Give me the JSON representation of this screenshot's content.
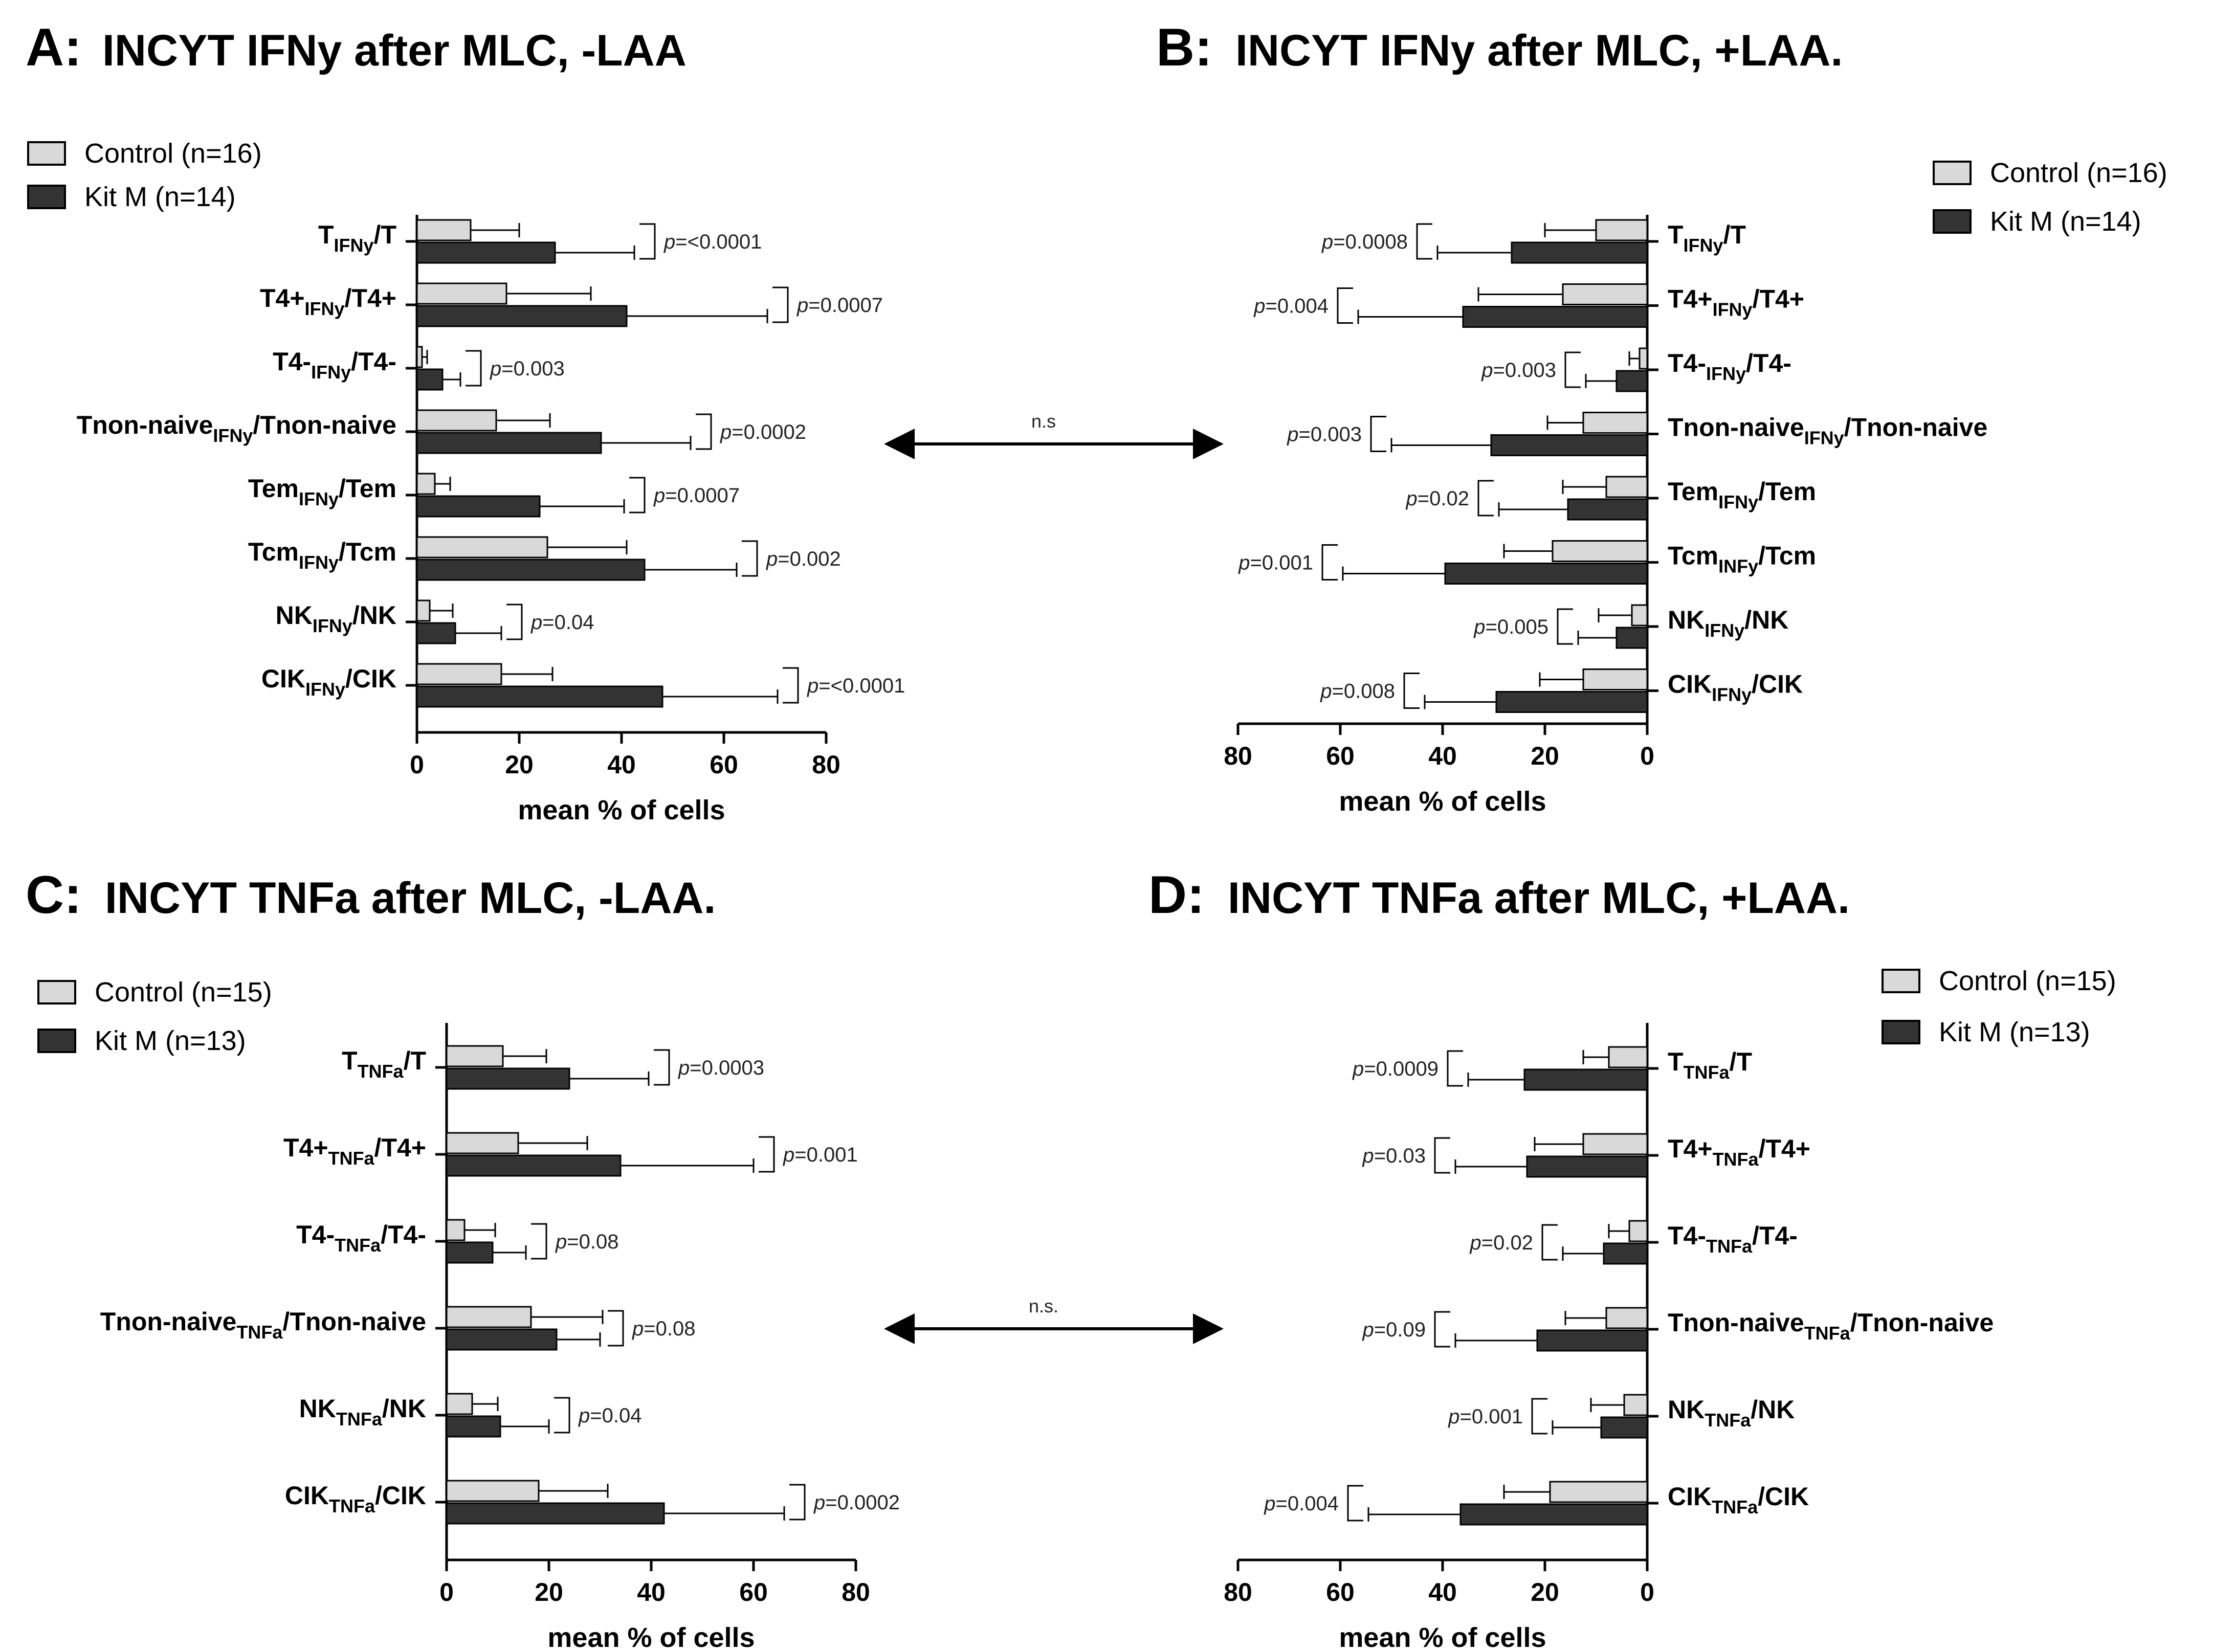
{
  "chart_data": [
    {
      "type": "bar",
      "orientation": "horizontal",
      "panel_letter": "A:",
      "title": "INCYT IFNy after MLC, -LAA",
      "xlabel": "mean % of cells",
      "xlim": [
        0,
        80
      ],
      "xticks": [
        "0",
        "20",
        "40",
        "60",
        "80"
      ],
      "categories": [
        {
          "main": "T",
          "sub": "IFNy",
          "tail": "/T"
        },
        {
          "main": "T4+",
          "sub": "IFNy",
          "tail": "/T4+"
        },
        {
          "main": "T4-",
          "sub": "IFNy",
          "tail": "/T4-"
        },
        {
          "main": "Tnon-naive",
          "sub": "IFNy",
          "tail": "/Tnon-naive"
        },
        {
          "main": "Tem",
          "sub": "IFNy",
          "tail": "/Tem"
        },
        {
          "main": "Tcm",
          "sub": "IFNy",
          "tail": "/Tcm"
        },
        {
          "main": "NK",
          "sub": "IFNy",
          "tail": "/NK"
        },
        {
          "main": "CIK",
          "sub": "IFNy",
          "tail": "/CIK"
        }
      ],
      "series": [
        {
          "name": "Control (n=16)",
          "color": "#d9d9d9",
          "values": [
            10.5,
            17.5,
            1,
            15.5,
            3.5,
            25.5,
            2.5,
            16.5
          ],
          "errors": [
            9.5,
            16.5,
            1,
            10.5,
            3,
            15.5,
            4.5,
            10
          ]
        },
        {
          "name": "Kit M (n=14)",
          "color": "#333333",
          "values": [
            27,
            41,
            5,
            36,
            24,
            44.5,
            7.5,
            48
          ],
          "errors": [
            15.5,
            27.5,
            3.5,
            17.5,
            16.5,
            18,
            9,
            22.5
          ]
        }
      ],
      "pvalues": [
        "=<0.0001",
        "=0.0007",
        "=0.003",
        "=0.0002",
        "=0.0007",
        "=0.002",
        "=0.04",
        "=<0.0001"
      ],
      "legend_position": "top-left"
    },
    {
      "type": "bar",
      "orientation": "horizontal",
      "direction": "right-to-left",
      "panel_letter": "B:",
      "title": "INCYT IFNy after MLC, +LAA.",
      "xlabel": "mean % of cells",
      "xlim": [
        0,
        80
      ],
      "xticks": [
        "80",
        "60",
        "40",
        "20",
        "0"
      ],
      "categories": [
        {
          "main": "T",
          "sub": "IFNy",
          "tail": "/T"
        },
        {
          "main": "T4+",
          "sub": "IFNy",
          "tail": "/T4+"
        },
        {
          "main": "T4-",
          "sub": "IFNy",
          "tail": "/T4-"
        },
        {
          "main": "Tnon-naive",
          "sub": "IFNy",
          "tail": "/Tnon-naive"
        },
        {
          "main": "Tem",
          "sub": "IFNy",
          "tail": "/Tem"
        },
        {
          "main": "Tcm",
          "sub": "INFy",
          "tail": "/Tcm"
        },
        {
          "main": "NK",
          "sub": "IFNy",
          "tail": "/NK"
        },
        {
          "main": "CIK",
          "sub": "IFNy",
          "tail": "/CIK"
        }
      ],
      "series": [
        {
          "name": "Control (n=16)",
          "color": "#d9d9d9",
          "values": [
            10,
            16.5,
            1.5,
            12.5,
            8,
            18.5,
            3,
            12.5
          ],
          "errors": [
            10,
            16.5,
            2,
            7,
            8.5,
            9.5,
            6.5,
            8.5
          ]
        },
        {
          "name": "Kit M (n=14)",
          "color": "#333333",
          "values": [
            26.5,
            36,
            6,
            30.5,
            15.5,
            39.5,
            6,
            29.5
          ],
          "errors": [
            14.5,
            20.5,
            6,
            19.5,
            13.5,
            20,
            7.5,
            14
          ]
        }
      ],
      "pvalues": [
        "=0.0008",
        "=0.004",
        "=0.003",
        "=0.003",
        "=0.02",
        "=0.001",
        "=0.005",
        "=0.008"
      ],
      "legend_position": "top-right"
    },
    {
      "type": "bar",
      "orientation": "horizontal",
      "panel_letter": "C:",
      "title": "INCYT TNFa after MLC, -LAA.",
      "xlabel": "mean % of cells",
      "xlim": [
        0,
        80
      ],
      "xticks": [
        "0",
        "20",
        "40",
        "60",
        "80"
      ],
      "categories": [
        {
          "main": "T",
          "sub": "TNFa",
          "tail": "/T"
        },
        {
          "main": "T4+",
          "sub": "TNFa",
          "tail": "/T4+"
        },
        {
          "main": "T4-",
          "sub": "TNFa",
          "tail": "/T4-"
        },
        {
          "main": "Tnon-naive",
          "sub": "TNFa",
          "tail": "/Tnon-naive"
        },
        {
          "main": "NK",
          "sub": "TNFa",
          "tail": "/NK"
        },
        {
          "main": "CIK",
          "sub": "TNFa",
          "tail": "/CIK"
        }
      ],
      "series": [
        {
          "name": "Control (n=15)",
          "color": "#d9d9d9",
          "values": [
            11,
            14,
            3.5,
            16.5,
            5,
            18
          ],
          "errors": [
            8.5,
            13.5,
            6,
            14,
            5,
            13.5
          ]
        },
        {
          "name": "Kit M (n=13)",
          "color": "#333333",
          "values": [
            24,
            34,
            9,
            21.5,
            10.5,
            42.5
          ],
          "errors": [
            15.5,
            26,
            6.5,
            8.5,
            9.5,
            23.5
          ]
        }
      ],
      "pvalues": [
        "=0.0003",
        "=0.001",
        "=0.08",
        "=0.08",
        "=0.04",
        "=0.0002"
      ],
      "legend_position": "top-left"
    },
    {
      "type": "bar",
      "orientation": "horizontal",
      "direction": "right-to-left",
      "panel_letter": "D:",
      "title": "INCYT TNFa after MLC, +LAA.",
      "xlabel": "mean % of cells",
      "xlim": [
        0,
        80
      ],
      "xticks": [
        "80",
        "60",
        "40",
        "20",
        "0"
      ],
      "categories": [
        {
          "main": "T",
          "sub": "TNFa",
          "tail": "/T"
        },
        {
          "main": "T4+",
          "sub": "TNFa",
          "tail": "/T4+"
        },
        {
          "main": "T4-",
          "sub": "TNFa",
          "tail": "/T4-"
        },
        {
          "main": "Tnon-naive",
          "sub": "TNFa",
          "tail": "/Tnon-naive"
        },
        {
          "main": "NK",
          "sub": "TNFa",
          "tail": "/NK"
        },
        {
          "main": "CIK",
          "sub": "TNFa",
          "tail": "/CIK"
        }
      ],
      "series": [
        {
          "name": "Control (n=15)",
          "color": "#d9d9d9",
          "values": [
            7.5,
            12.5,
            3.5,
            8,
            4.5,
            19
          ],
          "errors": [
            5,
            9.5,
            4,
            8,
            6.5,
            9
          ]
        },
        {
          "name": "Kit M (n=13)",
          "color": "#333333",
          "values": [
            24,
            23.5,
            8.5,
            21.5,
            9,
            36.5
          ],
          "errors": [
            11,
            14,
            8,
            16,
            9.5,
            18
          ]
        }
      ],
      "pvalues": [
        "=0.0009",
        "=0.03",
        "=0.02",
        "=0.09",
        "=0.001",
        "=0.004"
      ],
      "legend_position": "top-right"
    }
  ],
  "ns_arrows": [
    "n.s",
    "n.s."
  ],
  "pvalue_prefix": "p"
}
